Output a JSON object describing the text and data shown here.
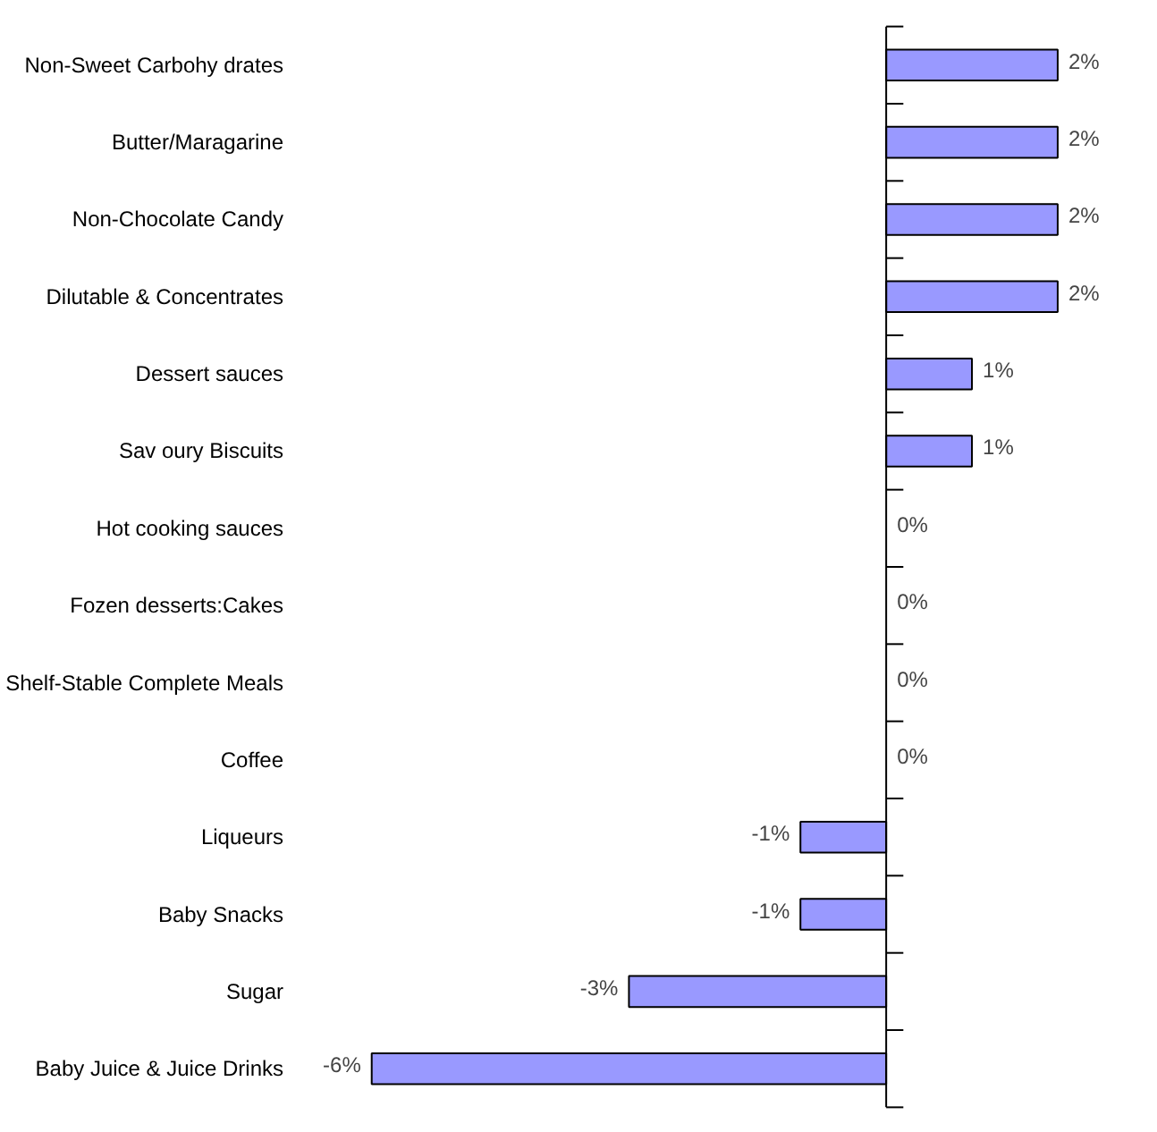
{
  "chart_data": {
    "type": "bar",
    "orientation": "horizontal",
    "categories": [
      "Non-Sweet Carbohy drates",
      "Butter/Maragarine",
      "Non-Chocolate Candy",
      "Dilutable & Concentrates",
      "Dessert sauces",
      "Sav oury Biscuits",
      "Hot cooking sauces",
      "Fozen desserts:Cakes",
      "Shelf-Stable Complete Meals",
      "Coffee",
      "Liqueurs",
      "Baby Snacks",
      "Sugar",
      "Baby Juice & Juice Drinks"
    ],
    "values": [
      2,
      2,
      2,
      2,
      1,
      1,
      0,
      0,
      0,
      0,
      -1,
      -1,
      -3,
      -6
    ],
    "value_labels": [
      "2%",
      "2%",
      "2%",
      "2%",
      "1%",
      "1%",
      "0%",
      "0%",
      "0%",
      "0%",
      "-1%",
      "-1%",
      "-3%",
      "-6%"
    ],
    "color": "#9999ff",
    "grid": false,
    "tick_labels": "y"
  }
}
